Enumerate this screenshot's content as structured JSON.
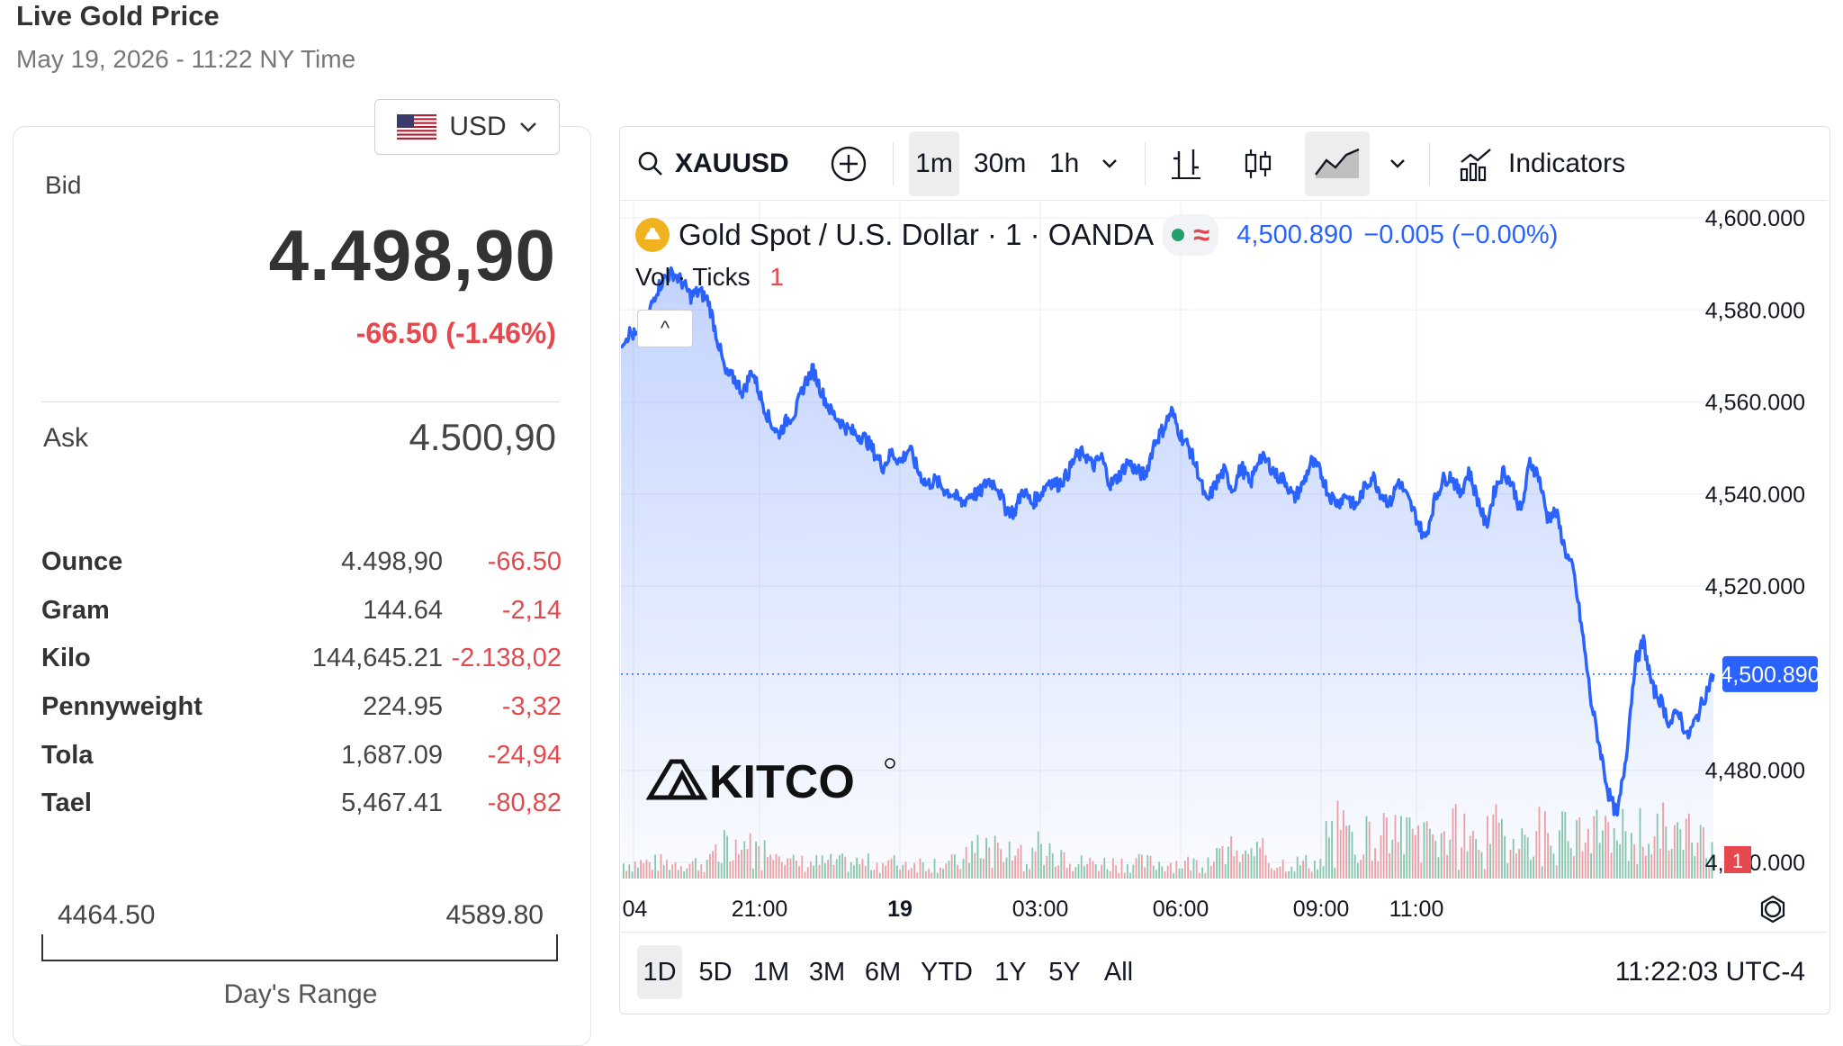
{
  "header": {
    "title": "Live Gold Price",
    "subtitle": "May 19, 2026 - 11:22 NY Time"
  },
  "currency": {
    "selected": "USD",
    "flag_icon": "us-flag-icon"
  },
  "quote": {
    "bid_label": "Bid",
    "bid": "4.498,90",
    "change": "-66.50 (-1.46%)",
    "ask_label": "Ask",
    "ask": "4.500,90"
  },
  "units": [
    {
      "name": "Ounce",
      "value": "4.498,90",
      "change": "-66.50"
    },
    {
      "name": "Gram",
      "value": "144.64",
      "change": "-2,14"
    },
    {
      "name": "Kilo",
      "value": "144,645.21",
      "change": "-2.138,02"
    },
    {
      "name": "Pennyweight",
      "value": "224.95",
      "change": "-3,32"
    },
    {
      "name": "Tola",
      "value": "1,687.09",
      "change": "-24,94"
    },
    {
      "name": "Tael",
      "value": "5,467.41",
      "change": "-80,82"
    }
  ],
  "day_range": {
    "low": "4464.50",
    "high": "4589.80",
    "label": "Day's Range"
  },
  "toolbar": {
    "symbol": "XAUUSD",
    "intervals": [
      "1m",
      "30m",
      "1h"
    ],
    "active_interval": "1m",
    "indicators_label": "Indicators"
  },
  "legend": {
    "name": "Gold Spot / U.S. Dollar · 1 · OANDA",
    "price": "4,500.890",
    "change": "−0.005 (−0.00%)",
    "vol_label": "Vol · Ticks",
    "vol_count": "1",
    "collapse_label": "^"
  },
  "watermark": "KITCO",
  "bottom": {
    "ranges": [
      "1D",
      "5D",
      "1M",
      "3M",
      "6M",
      "YTD",
      "1Y",
      "5Y",
      "All"
    ],
    "active_range": "1D",
    "clock": "11:22:03 UTC-4"
  },
  "colors": {
    "line": "#2962ff",
    "negative": "#e5484d",
    "vol_up": "#89c9a9",
    "vol_down": "#f2a2a2"
  },
  "chart_data": {
    "type": "area",
    "title": "",
    "xlabel": "",
    "ylabel": "",
    "ylim": [
      4460,
      4600
    ],
    "y_ticks": [
      "4,600.000",
      "4,580.000",
      "4,560.000",
      "4,540.000",
      "4,520.000",
      "4,480.000",
      "4,460.000"
    ],
    "x_ticks": [
      ":04",
      "21:00",
      "19",
      "03:00",
      "06:00",
      "09:00",
      "11:00"
    ],
    "last_price_label": "4,500.890",
    "last_price": 4500.89,
    "events_badge": "1",
    "series": [
      {
        "values": [
          4573,
          4575,
          4574,
          4578,
          4584,
          4587,
          4588,
          4586,
          4583,
          4584,
          4582,
          4574,
          4566,
          4565,
          4562,
          4567,
          4561,
          4556,
          4553,
          4556,
          4558,
          4564,
          4567,
          4562,
          4558,
          4556,
          4554,
          4553,
          4552,
          4549,
          4546,
          4549,
          4547,
          4550,
          4545,
          4542,
          4543,
          4541,
          4540,
          4538,
          4540,
          4540,
          4543,
          4542,
          4537,
          4536,
          4541,
          4538,
          4540,
          4543,
          4542,
          4544,
          4548,
          4549,
          4546,
          4548,
          4542,
          4544,
          4547,
          4545,
          4544,
          4551,
          4554,
          4558,
          4553,
          4550,
          4545,
          4538,
          4542,
          4545,
          4541,
          4546,
          4542,
          4548,
          4547,
          4544,
          4543,
          4539,
          4542,
          4547,
          4545,
          4540,
          4538,
          4540,
          4537,
          4541,
          4544,
          4540,
          4538,
          4543,
          4539,
          4535,
          4530,
          4538,
          4543,
          4544,
          4540,
          4545,
          4539,
          4533,
          4541,
          4545,
          4542,
          4536,
          4547,
          4544,
          4535,
          4536,
          4528,
          4523,
          4510,
          4495,
          4485,
          4475,
          4470,
          4483,
          4503,
          4508,
          4498,
          4495,
          4490,
          4493,
          4487,
          4491,
          4496,
          4501
        ]
      }
    ],
    "x_time_span": "19:04 to 11:22",
    "volume_note": "dense volume histogram, spikes near 09:00"
  }
}
